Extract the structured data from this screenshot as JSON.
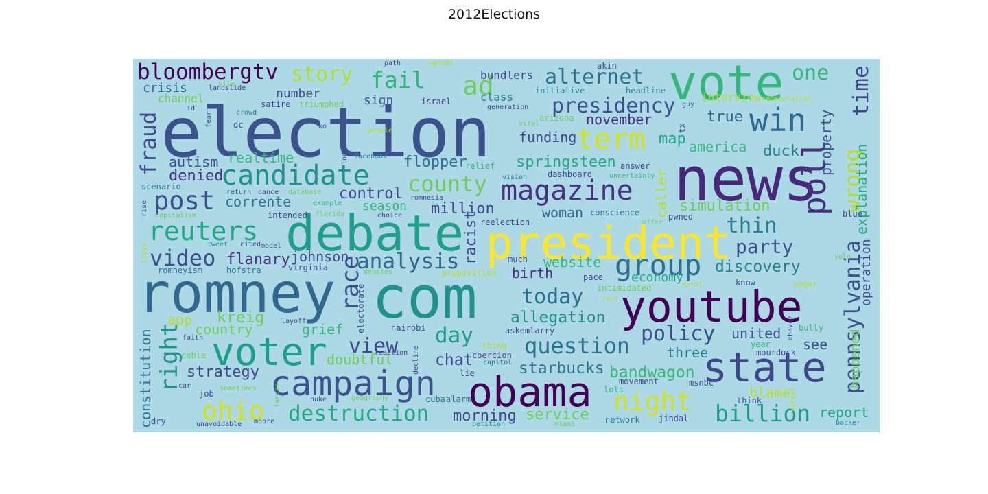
{
  "title": "2012Elections",
  "colors": {
    "background": "#add8e6"
  },
  "words": [
    {
      "text": "election",
      "color": "#3b528b"
    },
    {
      "text": "news",
      "color": "#482878"
    },
    {
      "text": "vote",
      "color": "#35b779"
    },
    {
      "text": "romney",
      "color": "#31688e"
    },
    {
      "text": "com",
      "color": "#21918c"
    },
    {
      "text": "debate",
      "color": "#1f9e89"
    },
    {
      "text": "president",
      "color": "#fde725"
    },
    {
      "text": "youtube",
      "color": "#440154"
    },
    {
      "text": "obama",
      "color": "#440154"
    },
    {
      "text": "voter",
      "color": "#1f9e89"
    },
    {
      "text": "state",
      "color": "#3e4989"
    },
    {
      "text": "campaign",
      "color": "#3b528b"
    },
    {
      "text": "candidate",
      "color": "#21918c"
    },
    {
      "text": "bloombergtv",
      "color": "#440154"
    },
    {
      "text": "magazine",
      "color": "#46327e"
    },
    {
      "text": "win",
      "color": "#31688e"
    },
    {
      "text": "term",
      "color": "#d2e21b"
    },
    {
      "text": "group",
      "color": "#2c728e"
    },
    {
      "text": "poll",
      "color": "#46327e"
    },
    {
      "text": "post",
      "color": "#3b528b"
    },
    {
      "text": "reuters",
      "color": "#22a884"
    },
    {
      "text": "presidency",
      "color": "#3b528b"
    },
    {
      "text": "alternet",
      "color": "#2c728e"
    },
    {
      "text": "ad",
      "color": "#6ece58"
    },
    {
      "text": "fail",
      "color": "#35b779"
    },
    {
      "text": "story",
      "color": "#b5de2b"
    },
    {
      "text": "night",
      "color": "#d2e21b"
    },
    {
      "text": "ohio",
      "color": "#d2e21b"
    },
    {
      "text": "destruction",
      "color": "#22a884"
    },
    {
      "text": "billion",
      "color": "#1f9e89"
    },
    {
      "text": "question",
      "color": "#2c728e"
    },
    {
      "text": "policy",
      "color": "#3b528b"
    },
    {
      "text": "today",
      "color": "#2c728e"
    },
    {
      "text": "view",
      "color": "#3e4989"
    },
    {
      "text": "day",
      "color": "#1f9e89"
    },
    {
      "text": "race",
      "color": "#3b528b"
    },
    {
      "text": "analysis",
      "color": "#31688e"
    },
    {
      "text": "video",
      "color": "#3b528b"
    },
    {
      "text": "county",
      "color": "#6ece58"
    },
    {
      "text": "right",
      "color": "#21918c"
    },
    {
      "text": "fraud",
      "color": "#3e4989"
    },
    {
      "text": "pennsylvania",
      "color": "#3b528b"
    },
    {
      "text": "wrong",
      "color": "#b5de2b"
    },
    {
      "text": "time",
      "color": "#3e4989"
    },
    {
      "text": "one",
      "color": "#35b779"
    },
    {
      "text": "thin",
      "color": "#26828e"
    },
    {
      "text": "party",
      "color": "#3b528b"
    },
    {
      "text": "discovery",
      "color": "#26828e"
    },
    {
      "text": "allegation",
      "color": "#21918c"
    },
    {
      "text": "starbucks",
      "color": "#2c728e"
    },
    {
      "text": "bandwagon",
      "color": "#35b779"
    },
    {
      "text": "chat",
      "color": "#3e4989"
    },
    {
      "text": "morning",
      "color": "#3e4989"
    },
    {
      "text": "service",
      "color": "#6ece58"
    },
    {
      "text": "constitution",
      "color": "#2c728e"
    },
    {
      "text": "strategy",
      "color": "#3e4989"
    },
    {
      "text": "doubtful",
      "color": "#6ece58"
    },
    {
      "text": "grief",
      "color": "#35b779"
    },
    {
      "text": "kreig",
      "color": "#6ece58"
    },
    {
      "text": "app",
      "color": "#b5de2b"
    },
    {
      "text": "country",
      "color": "#6ece58"
    },
    {
      "text": "flanary",
      "color": "#46327e"
    },
    {
      "text": "johnson",
      "color": "#3e4989"
    },
    {
      "text": "website",
      "color": "#35b779"
    },
    {
      "text": "birth",
      "color": "#46327e"
    },
    {
      "text": "economy",
      "color": "#22a884"
    },
    {
      "text": "simulation",
      "color": "#6ece58"
    },
    {
      "text": "caller",
      "color": "#b5de2b"
    },
    {
      "text": "racist",
      "color": "#3e4989"
    },
    {
      "text": "million",
      "color": "#3e4989"
    },
    {
      "text": "woman",
      "color": "#31688e"
    },
    {
      "text": "control",
      "color": "#3e4989"
    },
    {
      "text": "season",
      "color": "#35b779"
    },
    {
      "text": "corrente",
      "color": "#2c728e"
    },
    {
      "text": "realtime",
      "color": "#35b779"
    },
    {
      "text": "denied",
      "color": "#46327e"
    },
    {
      "text": "autism",
      "color": "#3b528b"
    },
    {
      "text": "flopper",
      "color": "#2c728e"
    },
    {
      "text": "springsteen",
      "color": "#22a884"
    },
    {
      "text": "funding",
      "color": "#3e4989"
    },
    {
      "text": "november",
      "color": "#46327e"
    },
    {
      "text": "map",
      "color": "#22a884"
    },
    {
      "text": "america",
      "color": "#35b779"
    },
    {
      "text": "duck",
      "color": "#26828e"
    },
    {
      "text": "true",
      "color": "#31688e"
    },
    {
      "text": "property",
      "color": "#3b528b"
    },
    {
      "text": "explanation",
      "color": "#22a884"
    },
    {
      "text": "operation",
      "color": "#3e4989"
    },
    {
      "text": "happened",
      "color": "#6ece58"
    },
    {
      "text": "report",
      "color": "#22a884"
    },
    {
      "text": "united",
      "color": "#3b528b"
    },
    {
      "text": "three",
      "color": "#26828e"
    },
    {
      "text": "see",
      "color": "#3b528b"
    },
    {
      "text": "blame",
      "color": "#b5de2b"
    },
    {
      "text": "interview",
      "color": "#b5de2b"
    },
    {
      "text": "crisis",
      "color": "#2c728e"
    },
    {
      "text": "channel",
      "color": "#6ece58"
    },
    {
      "text": "number",
      "color": "#3e4989"
    },
    {
      "text": "sign",
      "color": "#3b528b"
    },
    {
      "text": "class",
      "color": "#26828e"
    },
    {
      "text": "bundlers",
      "color": "#3e4989"
    },
    {
      "text": "initiative",
      "color": "#26828e"
    },
    {
      "text": "headline",
      "color": "#26828e"
    },
    {
      "text": "israel",
      "color": "#46327e"
    },
    {
      "text": "triumphed",
      "color": "#6ece58"
    },
    {
      "text": "satire",
      "color": "#3e4989"
    },
    {
      "text": "landslide",
      "color": "#3e4989"
    },
    {
      "text": "crowd",
      "color": "#26828e"
    },
    {
      "text": "dc",
      "color": "#3e4989"
    },
    {
      "text": "fear",
      "color": "#3b528b"
    },
    {
      "text": "akin",
      "color": "#3e4989"
    },
    {
      "text": "path",
      "color": "#3e4989"
    },
    {
      "text": "agenda",
      "color": "#b5de2b"
    },
    {
      "text": "generation",
      "color": "#3e4989"
    },
    {
      "text": "viral",
      "color": "#6ece58"
    },
    {
      "text": "arizona",
      "color": "#6ece58"
    },
    {
      "text": "redecoration",
      "color": "#b5de2b"
    },
    {
      "text": "guy",
      "color": "#3b528b"
    },
    {
      "text": "tx",
      "color": "#3e4989"
    },
    {
      "text": "ko",
      "color": "#3b528b"
    },
    {
      "text": "people",
      "color": "#b5de2b"
    },
    {
      "text": "lodge",
      "color": "#3b528b"
    },
    {
      "text": "facebook",
      "color": "#26828e"
    },
    {
      "text": "relief",
      "color": "#35b779"
    },
    {
      "text": "vision",
      "color": "#2c728e"
    },
    {
      "text": "answer",
      "color": "#3e4989"
    },
    {
      "text": "uncertainty",
      "color": "#35b779"
    },
    {
      "text": "scenario",
      "color": "#2c728e"
    },
    {
      "text": "rise",
      "color": "#3b528b"
    },
    {
      "text": "return",
      "color": "#3b528b"
    },
    {
      "text": "dance",
      "color": "#3e4989"
    },
    {
      "text": "database",
      "color": "#6ece58"
    },
    {
      "text": "romnesia",
      "color": "#3e4989"
    },
    {
      "text": "example",
      "color": "#35b779"
    },
    {
      "text": "choice",
      "color": "#3e4989"
    },
    {
      "text": "intended",
      "color": "#3e4989"
    },
    {
      "text": "florida",
      "color": "#6ece58"
    },
    {
      "text": "reelection",
      "color": "#3e4989"
    },
    {
      "text": "conscience",
      "color": "#2c728e"
    },
    {
      "text": "offer",
      "color": "#6ece58"
    },
    {
      "text": "pwned",
      "color": "#3e4989"
    },
    {
      "text": "blue",
      "color": "#3e4989"
    },
    {
      "text": "capitalism",
      "color": "#6ece58"
    },
    {
      "text": "tweet",
      "color": "#26828e"
    },
    {
      "text": "cited",
      "color": "#3e4989"
    },
    {
      "text": "model",
      "color": "#3b528b"
    },
    {
      "text": "libya",
      "color": "#b5de2b"
    },
    {
      "text": "romneyism",
      "color": "#2c728e"
    },
    {
      "text": "hofstra",
      "color": "#2c728e"
    },
    {
      "text": "virginia",
      "color": "#3e4989"
    },
    {
      "text": "debates",
      "color": "#6ece58"
    },
    {
      "text": "proposition",
      "color": "#b5de2b"
    },
    {
      "text": "much",
      "color": "#3e4989"
    },
    {
      "text": "pace",
      "color": "#3e4989"
    },
    {
      "text": "intimidated",
      "color": "#6ece58"
    },
    {
      "text": "know",
      "color": "#3e4989"
    },
    {
      "text": "worst",
      "color": "#b5de2b"
    },
    {
      "text": "anger",
      "color": "#b5de2b"
    },
    {
      "text": "yolo",
      "color": "#6ece58"
    },
    {
      "text": "race",
      "color": "#b5de2b"
    },
    {
      "text": "electorate",
      "color": "#3b528b"
    },
    {
      "text": "layoff",
      "color": "#3e4989"
    },
    {
      "text": "nairobi",
      "color": "#3e4989"
    },
    {
      "text": "askemlarry",
      "color": "#3e4989"
    },
    {
      "text": "faith",
      "color": "#3e4989"
    },
    {
      "text": "cable",
      "color": "#6ece58"
    },
    {
      "text": "reaction",
      "color": "#3e4989"
    },
    {
      "text": "decline",
      "color": "#3e4989"
    },
    {
      "text": "thing",
      "color": "#b5de2b"
    },
    {
      "text": "coercion",
      "color": "#3e4989"
    },
    {
      "text": "capitol",
      "color": "#2c728e"
    },
    {
      "text": "lie",
      "color": "#3e4989"
    },
    {
      "text": "dashboard",
      "color": "#3e4989"
    },
    {
      "text": "year",
      "color": "#35b779"
    },
    {
      "text": "chavez",
      "color": "#3b528b"
    },
    {
      "text": "bully",
      "color": "#35b779"
    },
    {
      "text": "mourdock",
      "color": "#3e4989"
    },
    {
      "text": "movement",
      "color": "#3e4989"
    },
    {
      "text": "lols",
      "color": "#35b779"
    },
    {
      "text": "msnbc",
      "color": "#3e4989"
    },
    {
      "text": "car",
      "color": "#3e4989"
    },
    {
      "text": "job",
      "color": "#3e4989"
    },
    {
      "text": "sometimes",
      "color": "#6ece58"
    },
    {
      "text": "forces",
      "color": "#6ece58"
    },
    {
      "text": "geography",
      "color": "#6ece58"
    },
    {
      "text": "nuke",
      "color": "#3e4989"
    },
    {
      "text": "cuba",
      "color": "#2c728e"
    },
    {
      "text": "alarm",
      "color": "#2c728e"
    },
    {
      "text": "think",
      "color": "#3e4989"
    },
    {
      "text": "normal",
      "color": "#b5de2b"
    },
    {
      "text": "dry",
      "color": "#3e4989"
    },
    {
      "text": "unavoidable",
      "color": "#3e4989"
    },
    {
      "text": "moore",
      "color": "#3e4989"
    },
    {
      "text": "petition",
      "color": "#26828e"
    },
    {
      "text": "miami",
      "color": "#6ece58"
    },
    {
      "text": "network",
      "color": "#26828e"
    },
    {
      "text": "jindal",
      "color": "#3e4989"
    },
    {
      "text": "backer",
      "color": "#26828e"
    },
    {
      "text": "id",
      "color": "#3e4989"
    },
    {
      "text": "site",
      "color": "#6ece58"
    }
  ]
}
